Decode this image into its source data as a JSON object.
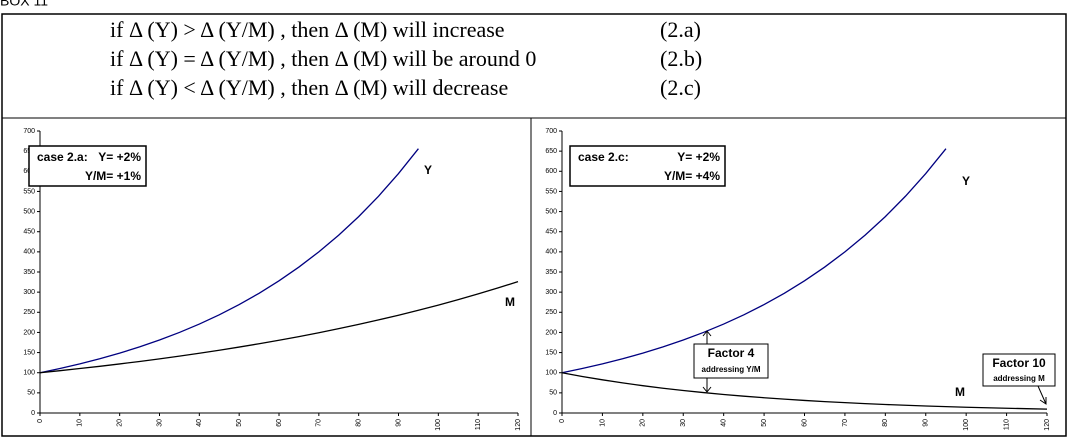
{
  "header": {
    "title": "BOX 11"
  },
  "equations": [
    {
      "text": "if Δ (Y) > Δ (Y/M) , then Δ (M) will increase",
      "tag": "(2.a)"
    },
    {
      "text": "if Δ (Y) = Δ (Y/M) , then Δ (M) will be around 0",
      "tag": "(2.b)"
    },
    {
      "text": "if Δ (Y) < Δ (Y/M) , then Δ (M) will decrease",
      "tag": "(2.c)"
    }
  ],
  "chart_data": [
    {
      "type": "line",
      "x": [
        0,
        5,
        10,
        15,
        20,
        25,
        30,
        35,
        40,
        45,
        50,
        55,
        60,
        65,
        70,
        75,
        80,
        85,
        90,
        95,
        100,
        105,
        110,
        115,
        120
      ],
      "series": [
        {
          "name": "Y",
          "color": "#000080",
          "values": [
            100,
            110.4,
            121.9,
            134.6,
            148.6,
            164.1,
            181.1,
            200.0,
            220.8,
            243.8,
            269.2,
            297.2,
            328.1,
            362.3,
            400.0,
            441.6,
            487.5,
            538.3,
            594.3,
            656.1,
            null,
            null,
            null,
            null,
            null
          ]
        },
        {
          "name": "M",
          "color": "#000000",
          "values": [
            100,
            105.0,
            110.4,
            115.9,
            121.8,
            127.9,
            134.4,
            141.2,
            148.3,
            155.8,
            163.7,
            171.9,
            180.6,
            189.7,
            199.3,
            209.4,
            220.0,
            231.1,
            242.7,
            255.0,
            267.9,
            281.4,
            295.6,
            310.5,
            326.2
          ]
        }
      ],
      "xlim": [
        0,
        120
      ],
      "xticks": [
        0,
        10,
        20,
        30,
        40,
        50,
        60,
        70,
        80,
        90,
        100,
        110,
        120
      ],
      "ylim": [
        0,
        700
      ],
      "yticks": [
        0,
        50,
        100,
        150,
        200,
        250,
        300,
        350,
        400,
        450,
        500,
        550,
        600,
        650,
        700
      ],
      "annotations": [
        "case 2.a:",
        "Y= +2%",
        "Y/M= +1%"
      ]
    },
    {
      "type": "line",
      "x": [
        0,
        5,
        10,
        15,
        20,
        25,
        30,
        35,
        40,
        45,
        50,
        55,
        60,
        65,
        70,
        75,
        80,
        85,
        90,
        95,
        100,
        105,
        110,
        115,
        120
      ],
      "series": [
        {
          "name": "Y",
          "color": "#000080",
          "values": [
            100,
            110.4,
            121.9,
            134.6,
            148.6,
            164.1,
            181.1,
            200.0,
            220.8,
            243.8,
            269.2,
            297.2,
            328.1,
            362.3,
            400.0,
            441.6,
            487.5,
            538.3,
            594.3,
            656.1,
            null,
            null,
            null,
            null,
            null
          ]
        },
        {
          "name": "M",
          "color": "#000000",
          "values": [
            100,
            90.7,
            82.4,
            74.7,
            67.8,
            61.5,
            55.8,
            50.7,
            46.0,
            41.7,
            37.9,
            34.4,
            31.2,
            28.3,
            25.7,
            23.3,
            21.1,
            19.2,
            17.4,
            15.8,
            14.3,
            13.0,
            11.8,
            10.7,
            9.7
          ]
        }
      ],
      "xlim": [
        0,
        120
      ],
      "xticks": [
        0,
        10,
        20,
        30,
        40,
        50,
        60,
        70,
        80,
        90,
        100,
        110,
        120
      ],
      "ylim": [
        0,
        700
      ],
      "yticks": [
        0,
        50,
        100,
        150,
        200,
        250,
        300,
        350,
        400,
        450,
        500,
        550,
        600,
        650,
        700
      ],
      "annotations": [
        "case 2.c:",
        "Y= +2%",
        "Y/M= +4%",
        "Factor 4",
        "addressing Y/M",
        "Factor 10",
        "addressing M"
      ]
    }
  ]
}
